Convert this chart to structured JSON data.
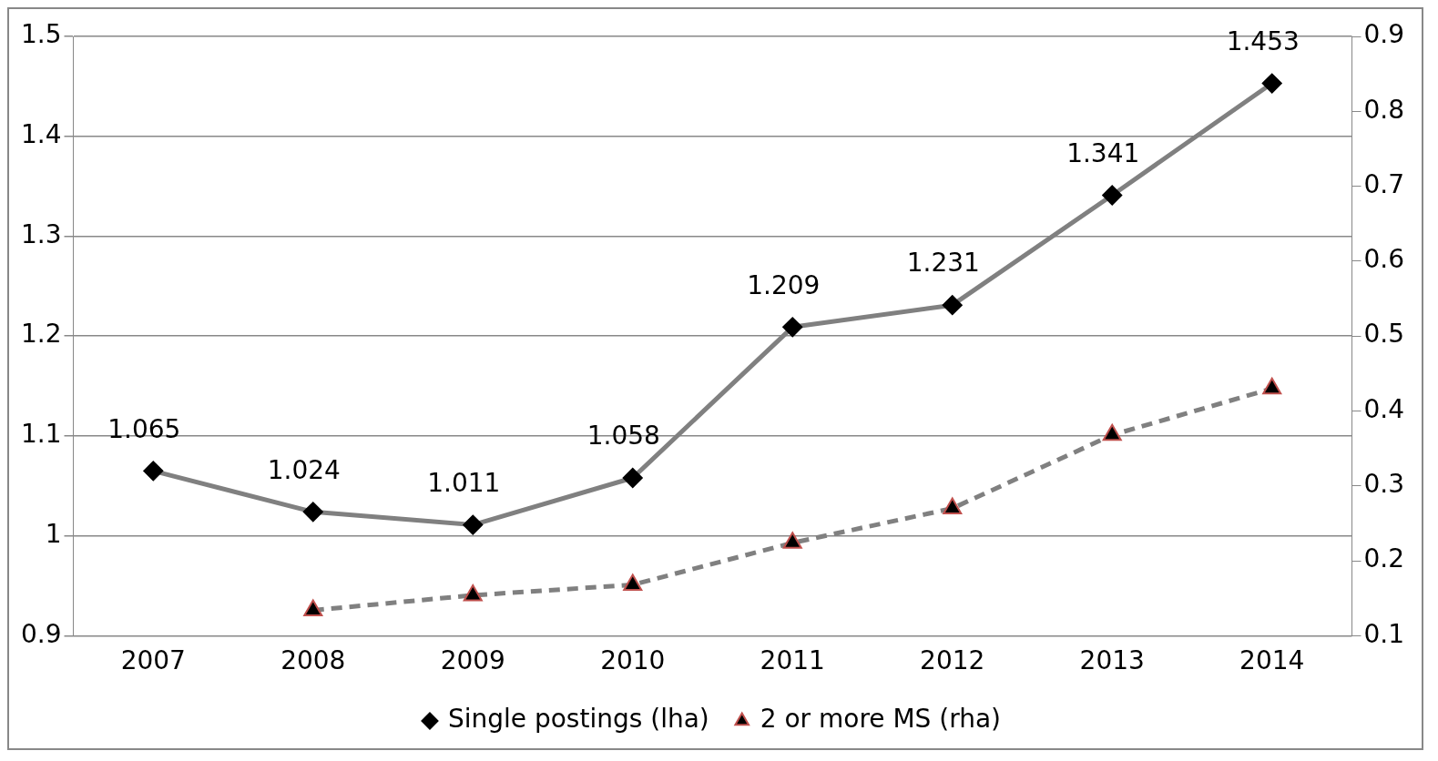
{
  "chart_data": {
    "type": "line",
    "categories": [
      "2007",
      "2008",
      "2009",
      "2010",
      "2011",
      "2012",
      "2013",
      "2014"
    ],
    "series": [
      {
        "name": "Single postings (lha)",
        "color": "#808080",
        "values": [
          1.065,
          1.024,
          1.011,
          1.058,
          1.209,
          1.231,
          1.341,
          1.453
        ],
        "value_labels": [
          "1.065",
          "1.024",
          "1.011",
          "1.058",
          "1.209",
          "1.231",
          "1.341",
          "1.453"
        ],
        "marker": "diamond",
        "line_style": "solid"
      },
      {
        "name": "2 or more MS (rha)",
        "color": "#808080",
        "values": [
          null,
          0.134,
          0.154,
          0.168,
          0.224,
          0.27,
          0.368,
          0.43
        ],
        "axis": "y2",
        "marker": "triangle",
        "line_style": "dashed"
      }
    ],
    "ylim": [
      0.9,
      1.5
    ],
    "yticks": [
      0.9,
      1,
      1.1,
      1.2,
      1.3,
      1.4,
      1.5
    ],
    "y2lim": [
      0.1,
      0.9
    ],
    "y2ticks": [
      0.1,
      0.2,
      0.3,
      0.4,
      0.5,
      0.6,
      0.7,
      0.8,
      0.9
    ],
    "grid": "y",
    "legend": "bottom"
  }
}
